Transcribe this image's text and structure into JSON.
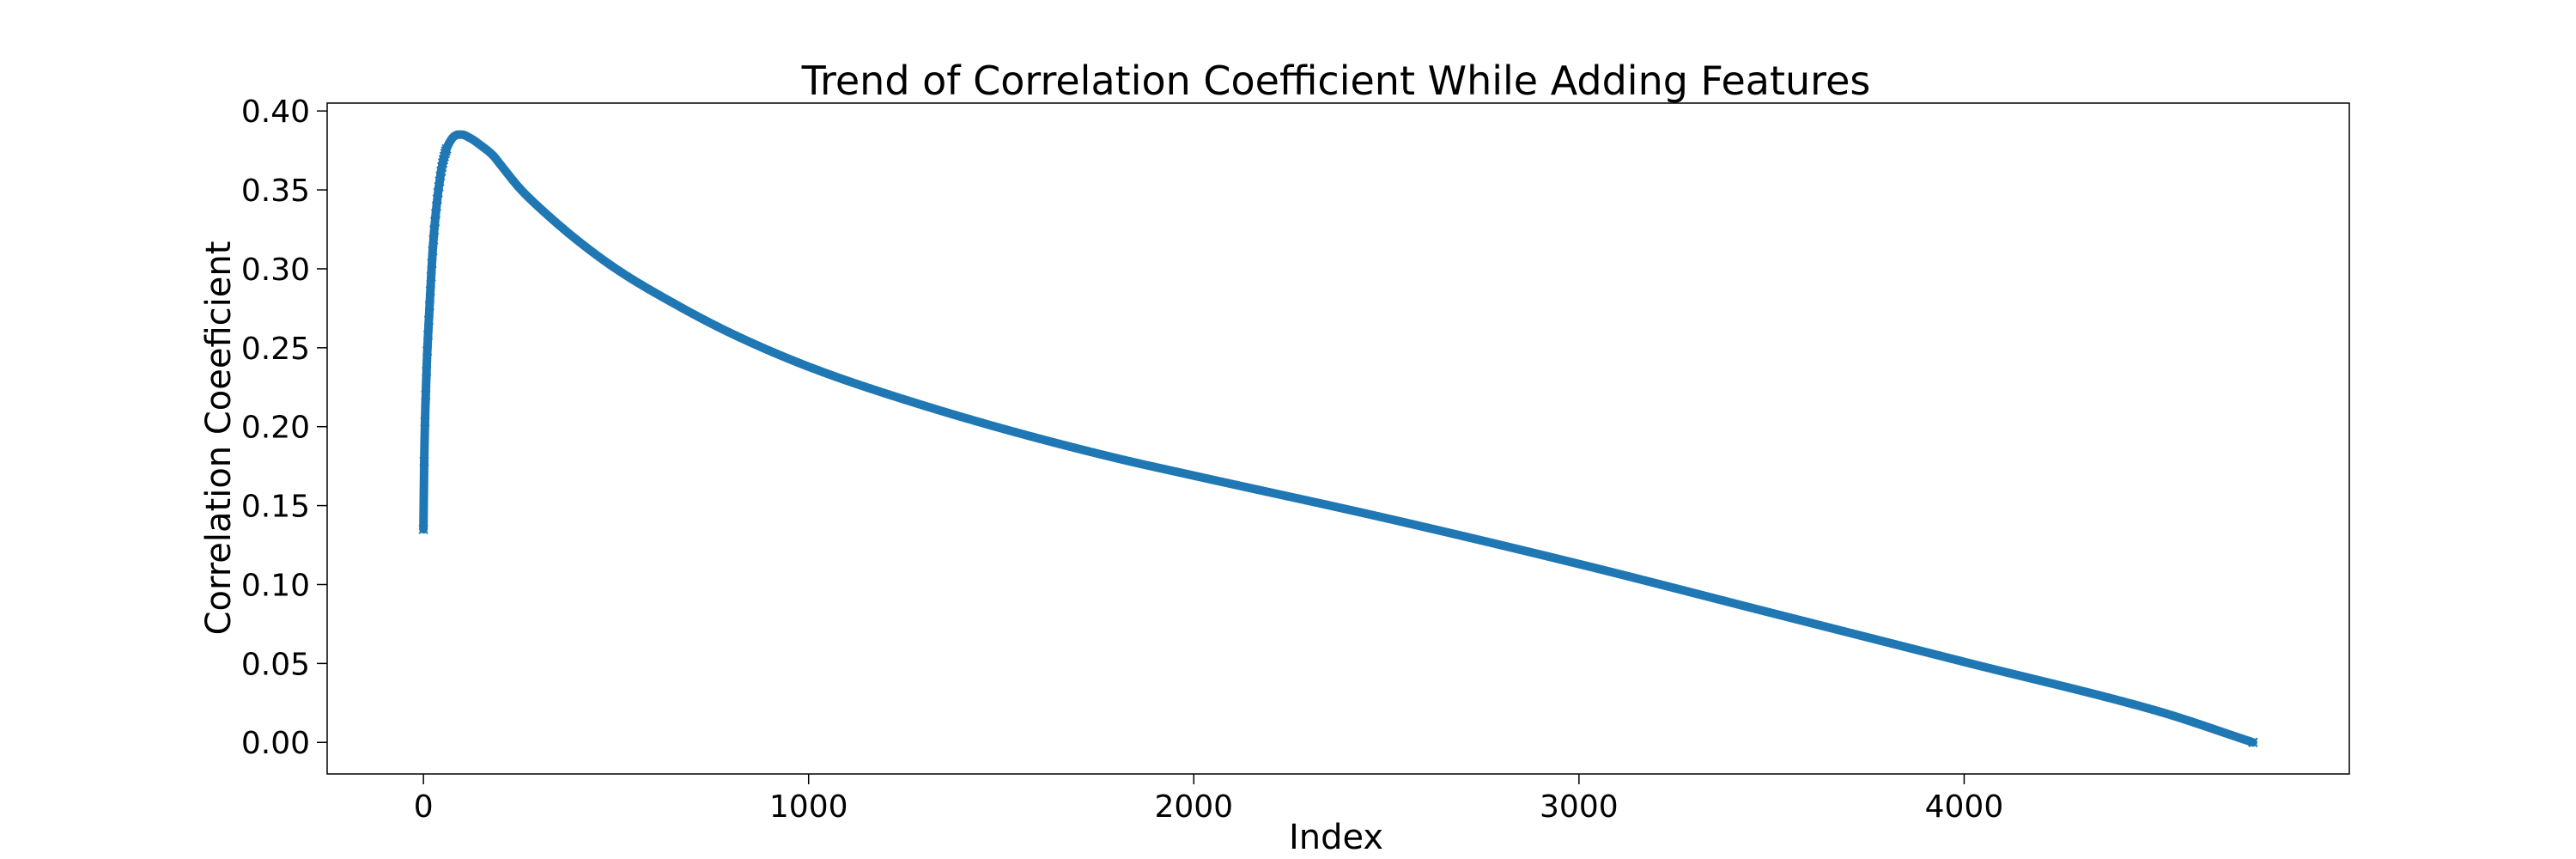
{
  "chart_data": {
    "type": "line",
    "title": "Trend of Correlation Coefficient While Adding Features",
    "xlabel": "Index",
    "ylabel": "Correlation Coeeficient",
    "xlim": [
      -250,
      5000
    ],
    "ylim": [
      -0.02,
      0.405
    ],
    "xticks": [
      0,
      1000,
      2000,
      3000,
      4000
    ],
    "xtick_labels": [
      "0",
      "1000",
      "2000",
      "3000",
      "4000"
    ],
    "yticks": [
      0.0,
      0.05,
      0.1,
      0.15,
      0.2,
      0.25,
      0.3,
      0.35,
      0.4
    ],
    "ytick_labels": [
      "0.00",
      "0.05",
      "0.10",
      "0.15",
      "0.20",
      "0.25",
      "0.30",
      "0.35",
      "0.40"
    ],
    "grid": false,
    "marker": "x",
    "colors": {
      "series": "#1f77b4",
      "axes": "#000000"
    },
    "series": [
      {
        "x": [
          0,
          2,
          4,
          6,
          8,
          10,
          12,
          15,
          20,
          25,
          30,
          40,
          50,
          60,
          70,
          80,
          90,
          100,
          120,
          150,
          180,
          200,
          250,
          300,
          400,
          500,
          600,
          800,
          1000,
          1200,
          1500,
          1800,
          2000,
          2500,
          3000,
          3500,
          4000,
          4500,
          4750
        ],
        "y": [
          0.135,
          0.178,
          0.203,
          0.22,
          0.235,
          0.248,
          0.258,
          0.272,
          0.295,
          0.315,
          0.33,
          0.352,
          0.367,
          0.376,
          0.381,
          0.384,
          0.385,
          0.385,
          0.383,
          0.378,
          0.372,
          0.366,
          0.351,
          0.339,
          0.318,
          0.3,
          0.285,
          0.259,
          0.238,
          0.221,
          0.199,
          0.18,
          0.169,
          0.142,
          0.113,
          0.082,
          0.051,
          0.02,
          0.0
        ]
      }
    ]
  }
}
